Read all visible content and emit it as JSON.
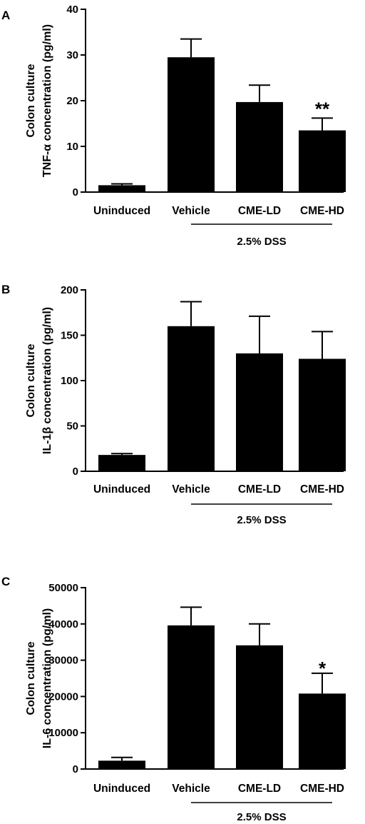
{
  "chart_data": [
    {
      "type": "bar",
      "panel": "A",
      "ylabel_lines": [
        "Colon culture",
        "TNF-α concentration (pg/ml)"
      ],
      "categories": [
        "Uninduced",
        "Vehicle",
        "CME-LD",
        "CME-HD"
      ],
      "values": [
        1.5,
        29.5,
        19.7,
        13.5
      ],
      "errors": [
        0.3,
        4.0,
        3.7,
        2.7
      ],
      "significance": [
        "",
        "",
        "",
        "**"
      ],
      "yticks": [
        0,
        10,
        20,
        30,
        40
      ],
      "ylim": [
        0,
        40
      ],
      "group_label": "2.5% DSS"
    },
    {
      "type": "bar",
      "panel": "B",
      "ylabel_lines": [
        "Colon culture",
        "IL-1β concentration (pg/ml)"
      ],
      "categories": [
        "Uninduced",
        "Vehicle",
        "CME-LD",
        "CME-HD"
      ],
      "values": [
        18,
        160,
        130,
        124
      ],
      "errors": [
        1.5,
        27,
        41,
        30
      ],
      "significance": [
        "",
        "",
        "",
        ""
      ],
      "yticks": [
        0,
        50,
        100,
        150,
        200
      ],
      "ylim": [
        0,
        200
      ],
      "group_label": "2.5% DSS"
    },
    {
      "type": "bar",
      "panel": "C",
      "ylabel_lines": [
        "Colon culture",
        "IL-6 concentration (pg/ml)"
      ],
      "categories": [
        "Uninduced",
        "Vehicle",
        "CME-LD",
        "CME-HD"
      ],
      "values": [
        2300,
        39600,
        34100,
        20800
      ],
      "errors": [
        900,
        5000,
        5900,
        5600
      ],
      "significance": [
        "",
        "",
        "",
        "*"
      ],
      "yticks": [
        0,
        10000,
        20000,
        30000,
        40000,
        50000
      ],
      "ylim": [
        0,
        50000
      ],
      "group_label": "2.5% DSS"
    }
  ]
}
